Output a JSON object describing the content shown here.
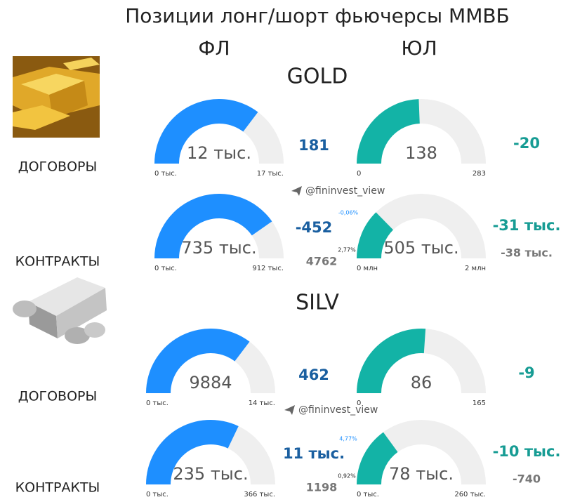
{
  "header": {
    "title": "Позиции лонг/шорт фьючерсы ММВБ",
    "columns": [
      "ФЛ",
      "ЮЛ"
    ]
  },
  "watermark": "@fininvest_view",
  "colors": {
    "fl": "#1e8fff",
    "ul": "#13b3a6",
    "track": "#efefef"
  },
  "sections": [
    {
      "name": "GOLD",
      "rows": [
        {
          "label": "ДОГОВОРЫ",
          "fl": {
            "value": 12,
            "value_label": "12 тыс.",
            "min": 0,
            "min_label": "0 тыс.",
            "max": 17,
            "max_label": "17 тыс.",
            "delta": 181
          },
          "ul": {
            "value": 138,
            "min": 0,
            "max": 283,
            "delta": -20
          }
        },
        {
          "label": "КОНТРАКТЫ",
          "fl": {
            "value": 735,
            "value_label": "735 тыс.",
            "min": 0,
            "min_label": "0 тыс.",
            "max": 912,
            "max_label": "912 тыс.",
            "delta": -452,
            "delta_pct": "-0,06%",
            "sub": 4762,
            "sub_pct": "2,77%"
          },
          "ul": {
            "value": 505,
            "value_label": "505 тыс.",
            "min": 0,
            "min_label": "0 млн",
            "max": 2000,
            "max_label": "2 млн",
            "delta": "-31 тыс.",
            "sub": "-38 тыс."
          }
        }
      ]
    },
    {
      "name": "SILV",
      "rows": [
        {
          "label": "ДОГОВОРЫ",
          "fl": {
            "value": 9884,
            "min": 0,
            "min_label": "0 тыс.",
            "max": 14000,
            "max_label": "14 тыс.",
            "delta": 462
          },
          "ul": {
            "value": 86,
            "min": 0,
            "max": 165,
            "delta": -9
          }
        },
        {
          "label": "КОНТРАКТЫ",
          "fl": {
            "value": 235,
            "value_label": "235 тыс.",
            "min": 0,
            "min_label": "0 тыс.",
            "max": 366,
            "max_label": "366 тыс.",
            "delta": "11 тыс.",
            "delta_pct": "4,77%",
            "sub": 1198,
            "sub_pct": "0,92%"
          },
          "ul": {
            "value": 78,
            "value_label": "78 тыс.",
            "min": 0,
            "min_label": "0 тыс.",
            "max": 260,
            "max_label": "260 тыс.",
            "delta": "-10 тыс.",
            "sub": -740
          }
        }
      ]
    }
  ]
}
